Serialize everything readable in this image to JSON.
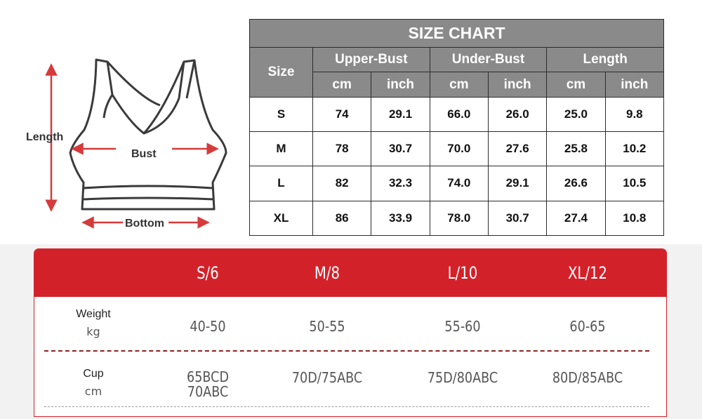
{
  "illustration": {
    "length_label": "Length",
    "bust_label": "Bust",
    "bottom_label": "Bottom",
    "arrow_color": "#d63a3a"
  },
  "size_chart": {
    "title": "SIZE CHART",
    "size_header": "Size",
    "groups": [
      "Upper-Bust",
      "Under-Bust",
      "Length"
    ],
    "units": [
      "cm",
      "inch",
      "cm",
      "inch",
      "cm",
      "inch"
    ],
    "rows": [
      {
        "size": "S",
        "values": [
          "74",
          "29.1",
          "66.0",
          "26.0",
          "25.0",
          "9.8"
        ]
      },
      {
        "size": "M",
        "values": [
          "78",
          "30.7",
          "70.0",
          "27.6",
          "25.8",
          "10.2"
        ]
      },
      {
        "size": "L",
        "values": [
          "82",
          "32.3",
          "74.0",
          "29.1",
          "26.6",
          "10.5"
        ]
      },
      {
        "size": "XL",
        "values": [
          "86",
          "33.9",
          "78.0",
          "30.7",
          "27.4",
          "10.8"
        ]
      }
    ],
    "header_color": "#8a8a8a"
  },
  "fit_chart": {
    "accent_color": "#d3212a",
    "sizes": [
      "S/6",
      "M/8",
      "L/10",
      "XL/12"
    ],
    "weight": {
      "label": "Weight",
      "unit": "kg",
      "values": [
        "40-50",
        "50-55",
        "55-60",
        "60-65"
      ]
    },
    "cup": {
      "label": "Cup",
      "unit": "cm",
      "values": [
        "65BCD",
        "70D/75ABC",
        "75D/80ABC",
        "80D/85ABC"
      ],
      "first_extra": "70ABC"
    }
  }
}
